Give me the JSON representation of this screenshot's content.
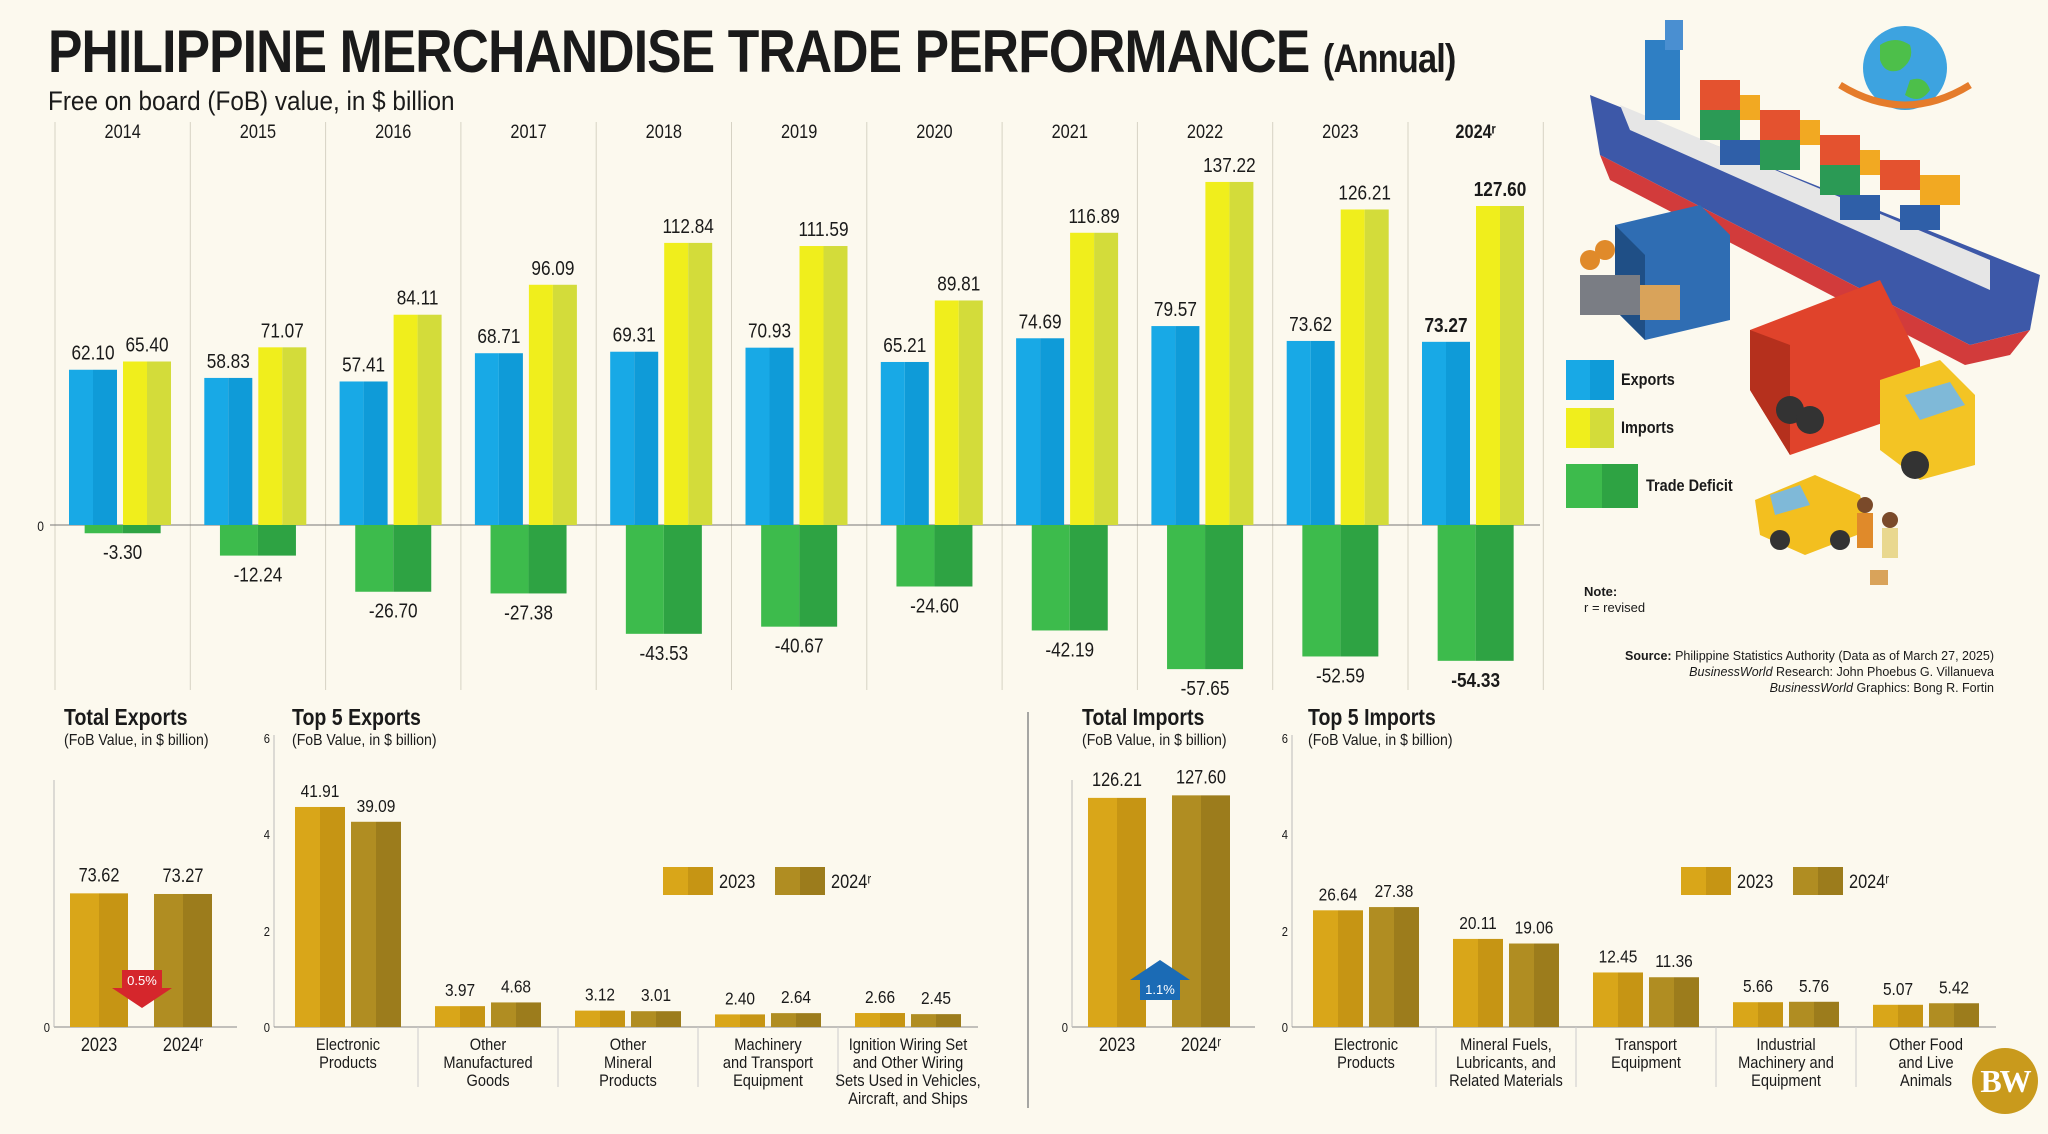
{
  "header": {
    "title": "PHILIPPINE MERCHANDISE TRADE PERFORMANCE",
    "title_paren": "(Annual)",
    "subtitle": "Free on board (FoB) value, in $ billion"
  },
  "colors": {
    "exports": "#18a9e6",
    "imports": "#e0e61a",
    "deficit": "#33b247",
    "bar2023": "#d9a619",
    "bar2024": "#b08d22",
    "background": "#fcf9ee"
  },
  "legend": {
    "exports": "Exports",
    "imports": "Imports",
    "deficit": "Trade Deficit",
    "y2023": "2023",
    "y2024": "2024ʳ"
  },
  "note": {
    "heading": "Note:",
    "text": "r = revised"
  },
  "source": {
    "line1_bold": "Source:",
    "line1": "Philippine Statistics Authority (Data as of March 27, 2025)",
    "line2_italic": "BusinessWorld",
    "line2": "Research: John Phoebus G. Villanueva",
    "line3_italic": "BusinessWorld",
    "line3": "Graphics: Bong R. Fortin"
  },
  "logo": "BW",
  "sections": {
    "total_exports": {
      "title": "Total Exports",
      "sub": "(FoB Value, in $ billion)"
    },
    "top_exports": {
      "title": "Top 5 Exports",
      "sub": "(FoB Value, in $ billion)"
    },
    "total_imports": {
      "title": "Total Imports",
      "sub": "(FoB Value, in $ billion)"
    },
    "top_imports": {
      "title": "Top 5 Imports",
      "sub": "(FoB Value, in $ billion)"
    }
  },
  "chart_data": [
    {
      "type": "bar",
      "title": "PHILIPPINE MERCHANDISE TRADE PERFORMANCE (Annual)",
      "subtitle": "Free on board (FoB) value, in $ billion",
      "categories": [
        "2014",
        "2015",
        "2016",
        "2017",
        "2018",
        "2019",
        "2020",
        "2021",
        "2022",
        "2023",
        "2024ʳ"
      ],
      "series": [
        {
          "name": "Exports",
          "values": [
            62.1,
            58.83,
            57.41,
            68.71,
            69.31,
            70.93,
            65.21,
            74.69,
            79.57,
            73.62,
            73.27
          ],
          "labels": [
            "62.10",
            "58.83",
            "57.41",
            "68.71",
            "69.31",
            "70.93",
            "65.21",
            "74.69",
            "79.57",
            "73.62",
            "73.27"
          ]
        },
        {
          "name": "Imports",
          "values": [
            65.4,
            71.07,
            84.11,
            96.09,
            112.84,
            111.59,
            89.81,
            116.89,
            137.22,
            126.21,
            127.6
          ],
          "labels": [
            "65.40",
            "71.07",
            "84.11",
            "96.09",
            "112.84",
            "111.59",
            "89.81",
            "116.89",
            "137.22",
            "126.21",
            "127.60"
          ]
        },
        {
          "name": "Trade Deficit",
          "values": [
            -3.3,
            -12.24,
            -26.7,
            -27.38,
            -43.53,
            -40.67,
            -24.6,
            -42.19,
            -57.65,
            -52.59,
            -54.33
          ],
          "labels": [
            "-3.30",
            "-12.24",
            "-26.70",
            "-27.38",
            "-43.53",
            "-40.67",
            "-24.60",
            "-42.19",
            "-57.65",
            "-52.59",
            "-54.33"
          ]
        }
      ],
      "y_ticks": [
        "0"
      ],
      "ylim": [
        -60,
        140
      ]
    },
    {
      "type": "bar",
      "title": "Total Exports",
      "subtitle": "(FoB Value, in $ billion)",
      "categories": [
        "2023",
        "2024ʳ"
      ],
      "values": [
        73.62,
        73.27
      ],
      "labels": [
        "73.62",
        "73.27"
      ],
      "annotation": "0.5%",
      "annotation_direction": "down",
      "y_ticks": [
        "0"
      ]
    },
    {
      "type": "bar",
      "title": "Top 5 Exports",
      "subtitle": "(FoB Value, in $ billion)",
      "categories": [
        "Electronic Products",
        "Other Manufactured Goods",
        "Other Mineral Products",
        "Machinery and Transport Equipment",
        "Ignition Wiring Set and Other Wiring Sets Used in Vehicles, Aircraft, and Ships"
      ],
      "category_lines": [
        [
          "Electronic",
          "Products"
        ],
        [
          "Other",
          "Manufactured",
          "Goods"
        ],
        [
          "Other",
          "Mineral",
          "Products"
        ],
        [
          "Machinery",
          "and Transport",
          "Equipment"
        ],
        [
          "Ignition Wiring Set",
          "and Other Wiring",
          "Sets Used in Vehicles,",
          "Aircraft, and Ships"
        ]
      ],
      "series": [
        {
          "name": "2023",
          "values": [
            41.91,
            3.97,
            3.12,
            2.4,
            2.66
          ],
          "labels": [
            "41.91",
            "3.97",
            "3.12",
            "2.40",
            "2.66"
          ]
        },
        {
          "name": "2024ʳ",
          "values": [
            39.09,
            4.68,
            3.01,
            2.64,
            2.45
          ],
          "labels": [
            "39.09",
            "4.68",
            "3.01",
            "2.64",
            "2.45"
          ]
        }
      ],
      "y_ticks": [
        "0",
        "2",
        "4",
        "6"
      ]
    },
    {
      "type": "bar",
      "title": "Total Imports",
      "subtitle": "(FoB Value, in $ billion)",
      "categories": [
        "2023",
        "2024ʳ"
      ],
      "values": [
        126.21,
        127.6
      ],
      "labels": [
        "126.21",
        "127.60"
      ],
      "annotation": "1.1%",
      "annotation_direction": "up",
      "y_ticks": [
        "0"
      ]
    },
    {
      "type": "bar",
      "title": "Top 5 Imports",
      "subtitle": "(FoB Value, in $ billion)",
      "categories": [
        "Electronic Products",
        "Mineral Fuels, Lubricants, and Related Materials",
        "Transport Equipment",
        "Industrial Machinery and Equipment",
        "Other Food and Live Animals"
      ],
      "category_lines": [
        [
          "Electronic",
          "Products"
        ],
        [
          "Mineral Fuels,",
          "Lubricants, and",
          "Related Materials"
        ],
        [
          "Transport",
          "Equipment"
        ],
        [
          "Industrial",
          "Machinery and",
          "Equipment"
        ],
        [
          "Other Food",
          "and Live",
          "Animals"
        ]
      ],
      "series": [
        {
          "name": "2023",
          "values": [
            26.64,
            20.11,
            12.45,
            5.66,
            5.07
          ],
          "labels": [
            "26.64",
            "20.11",
            "12.45",
            "5.66",
            "5.07"
          ]
        },
        {
          "name": "2024ʳ",
          "values": [
            27.38,
            19.06,
            11.36,
            5.76,
            5.42
          ],
          "labels": [
            "27.38",
            "19.06",
            "11.36",
            "5.76",
            "5.42"
          ]
        }
      ],
      "y_ticks": [
        "0",
        "2",
        "4",
        "6"
      ]
    }
  ]
}
